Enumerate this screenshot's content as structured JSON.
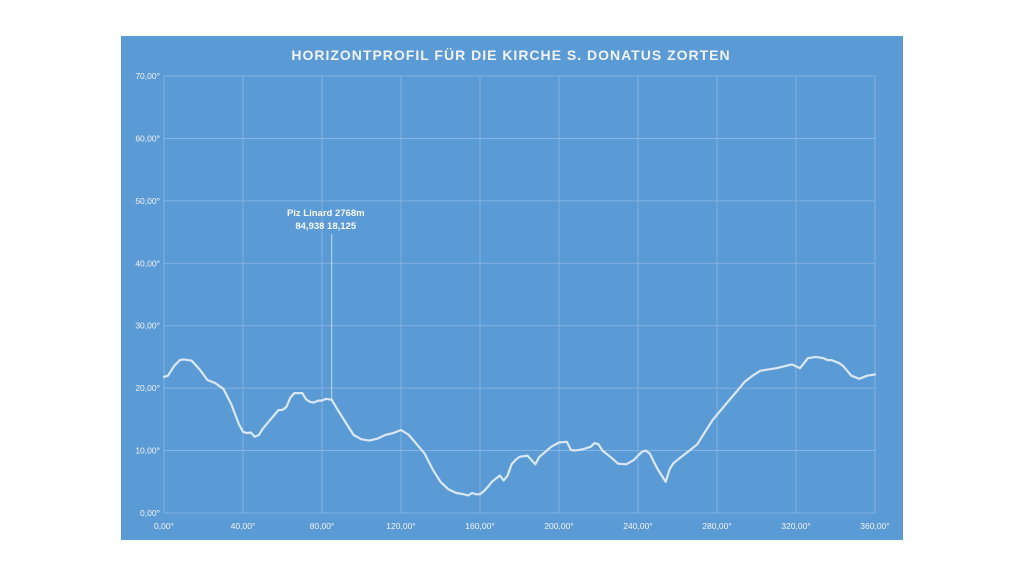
{
  "chart_data": {
    "type": "line",
    "title": "HORIZONTPROFIL FÜR DIE KIRCHE S. DONATUS ZORTEN",
    "xlabel": "",
    "ylabel": "",
    "xlim": [
      0,
      360
    ],
    "ylim": [
      0,
      70
    ],
    "x_ticks": [
      0,
      40,
      80,
      120,
      160,
      200,
      240,
      280,
      320,
      360
    ],
    "y_ticks": [
      0,
      10,
      20,
      30,
      40,
      50,
      60,
      70
    ],
    "x_tick_labels": [
      "0,00°",
      "40,00°",
      "80,00°",
      "120,00°",
      "160,00°",
      "200,00°",
      "240,00°",
      "280,00°",
      "320,00°",
      "360,00°"
    ],
    "y_tick_labels": [
      "0,00°",
      "10,00°",
      "20,00°",
      "30,00°",
      "40,00°",
      "50,00°",
      "60,00°",
      "70,00°"
    ],
    "grid": true,
    "legend": "none",
    "colors": {
      "background": "#5b9bd5",
      "line": "#dbe7f3",
      "grid": "#8db7e3",
      "text": "#f2f2f2"
    },
    "series": [
      {
        "x": [
          0,
          2,
          5,
          8,
          10,
          14,
          18,
          22,
          26,
          30,
          34,
          38,
          40,
          42,
          44,
          46,
          48,
          50,
          54,
          58,
          60,
          62,
          64,
          66,
          70,
          72,
          74,
          76,
          78,
          80,
          82,
          84.938,
          88,
          92,
          96,
          100,
          104,
          108,
          112,
          116,
          120,
          124,
          128,
          132,
          136,
          140,
          144,
          148,
          152,
          154,
          156,
          158,
          160,
          162,
          164,
          166,
          168,
          170,
          172,
          174,
          176,
          178,
          180,
          184,
          188,
          190,
          192,
          196,
          200,
          204,
          206,
          208,
          212,
          216,
          218,
          220,
          222,
          226,
          230,
          234,
          238,
          240,
          242,
          244,
          246,
          248,
          250,
          252,
          254,
          256,
          258,
          262,
          266,
          270,
          274,
          278,
          282,
          286,
          290,
          294,
          298,
          302,
          306,
          310,
          314,
          318,
          322,
          326,
          330,
          334,
          336,
          338,
          342,
          344,
          348,
          352,
          356,
          360
        ],
        "y": [
          21.8,
          22.0,
          23.5,
          24.5,
          24.6,
          24.4,
          23.0,
          21.3,
          20.8,
          19.9,
          17.5,
          14.2,
          13.0,
          12.8,
          12.9,
          12.2,
          12.5,
          13.5,
          15.0,
          16.5,
          16.5,
          17.0,
          18.5,
          19.2,
          19.2,
          18.2,
          17.8,
          17.7,
          18.0,
          18.0,
          18.3,
          18.125,
          16.5,
          14.5,
          12.5,
          11.8,
          11.6,
          11.9,
          12.5,
          12.8,
          13.3,
          12.5,
          11.0,
          9.5,
          7.0,
          5.0,
          3.8,
          3.2,
          3.0,
          2.8,
          3.2,
          3.0,
          3.0,
          3.5,
          4.2,
          5.0,
          5.5,
          6.0,
          5.2,
          6.0,
          7.8,
          8.5,
          9.0,
          9.2,
          7.8,
          9.0,
          9.5,
          10.6,
          11.3,
          11.4,
          10.1,
          10.0,
          10.2,
          10.6,
          11.2,
          11.0,
          10.0,
          9.0,
          7.9,
          7.8,
          8.5,
          9.2,
          9.8,
          10.0,
          9.5,
          8.2,
          7.0,
          6.0,
          5.0,
          7.0,
          8.0,
          9.0,
          10.0,
          11.0,
          13.0,
          15.0,
          16.5,
          18.0,
          19.5,
          21.0,
          22.0,
          22.8,
          23.0,
          23.2,
          23.5,
          23.8,
          23.2,
          24.8,
          25.0,
          24.8,
          24.5,
          24.5,
          24.0,
          23.5,
          22.0,
          21.5,
          22.0,
          22.2
        ]
      }
    ],
    "annotations": [
      {
        "line1": "Piz Linard 2768m",
        "line2": "84,938 18,125",
        "x": 84.938,
        "y": 18.125
      }
    ]
  }
}
